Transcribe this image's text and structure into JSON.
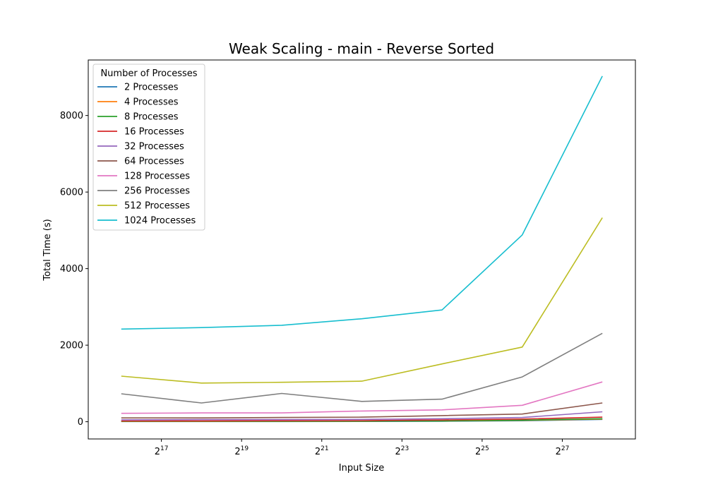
{
  "chart_data": {
    "type": "line",
    "title": "Weak Scaling - main - Reverse Sorted",
    "xlabel": "Input Size",
    "ylabel": "Total Time (s)",
    "x_scale": "log2",
    "x": [
      65536,
      262144,
      1048576,
      4194304,
      16777216,
      67108864,
      268435456
    ],
    "xlim": [
      37000,
      475000000
    ],
    "ylim": [
      -450,
      9450
    ],
    "x_ticks": [
      {
        "value": 131072,
        "base": "2",
        "exp": "17"
      },
      {
        "value": 524288,
        "base": "2",
        "exp": "19"
      },
      {
        "value": 2097152,
        "base": "2",
        "exp": "21"
      },
      {
        "value": 8388608,
        "base": "2",
        "exp": "23"
      },
      {
        "value": 33554432,
        "base": "2",
        "exp": "25"
      },
      {
        "value": 134217728,
        "base": "2",
        "exp": "27"
      }
    ],
    "y_ticks": [
      {
        "value": 0,
        "label": "0"
      },
      {
        "value": 2000,
        "label": "2000"
      },
      {
        "value": 4000,
        "label": "4000"
      },
      {
        "value": 6000,
        "label": "6000"
      },
      {
        "value": 8000,
        "label": "8000"
      }
    ],
    "grid": false,
    "legend": {
      "title": "Number of Processes",
      "position": "top-left"
    },
    "series": [
      {
        "name": "2 Processes",
        "color": "#1f77b4",
        "values": [
          5,
          5,
          6,
          8,
          12,
          25,
          60
        ]
      },
      {
        "name": "4 Processes",
        "color": "#ff7f0e",
        "values": [
          8,
          8,
          9,
          12,
          20,
          35,
          70
        ]
      },
      {
        "name": "8 Processes",
        "color": "#2ca02c",
        "values": [
          10,
          10,
          12,
          15,
          22,
          40,
          80
        ]
      },
      {
        "name": "16 Processes",
        "color": "#d62728",
        "values": [
          20,
          22,
          25,
          30,
          45,
          70,
          120
        ]
      },
      {
        "name": "32 Processes",
        "color": "#9467bd",
        "values": [
          50,
          55,
          55,
          60,
          80,
          110,
          260
        ]
      },
      {
        "name": "64 Processes",
        "color": "#8c564b",
        "values": [
          100,
          100,
          110,
          120,
          160,
          200,
          490
        ]
      },
      {
        "name": "128 Processes",
        "color": "#e377c2",
        "values": [
          220,
          230,
          230,
          280,
          310,
          430,
          1040
        ]
      },
      {
        "name": "256 Processes",
        "color": "#7f7f7f",
        "values": [
          730,
          490,
          740,
          530,
          590,
          1170,
          2310
        ]
      },
      {
        "name": "512 Processes",
        "color": "#bcbd22",
        "values": [
          1190,
          1010,
          1030,
          1060,
          1510,
          1950,
          5330
        ]
      },
      {
        "name": "1024 Processes",
        "color": "#17becf",
        "values": [
          2420,
          2460,
          2520,
          2690,
          2920,
          4880,
          9030
        ]
      }
    ]
  }
}
